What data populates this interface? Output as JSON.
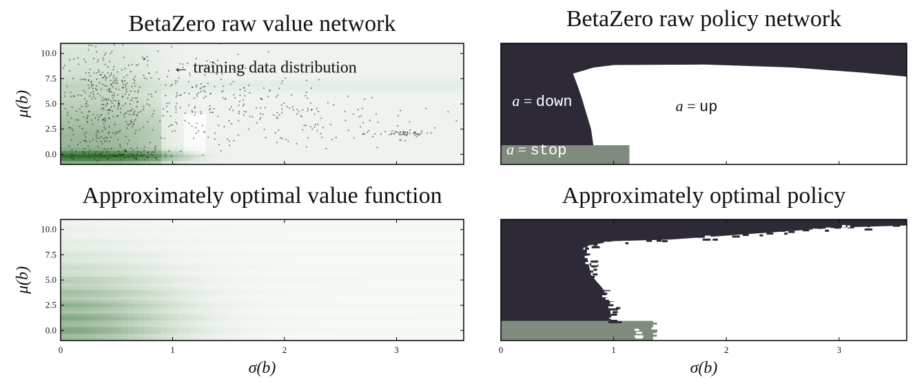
{
  "chart_data": [
    {
      "type": "heatmap",
      "title": "BetaZero raw value network",
      "xlabel": "",
      "ylabel": "μ(b)",
      "xlim": [
        0,
        3.6
      ],
      "ylim": [
        -1,
        11
      ],
      "x_ticks": [],
      "y_ticks": [
        "10.0",
        "7.5",
        "5.0",
        "2.5",
        "0.0"
      ],
      "y_tick_values": [
        10,
        7.5,
        5,
        2.5,
        0
      ],
      "colormap": [
        "#ffffff",
        "#2f6e2c"
      ],
      "annotation": {
        "text": "← training data distribution",
        "x": 1.0,
        "y": 8.1
      },
      "scatter_clusters": [
        {
          "cx": 0.42,
          "cy": 5.0,
          "sx": 0.22,
          "sy": 3.0,
          "n": 420
        },
        {
          "cx": 1.25,
          "cy": 5.5,
          "sx": 0.3,
          "sy": 2.3,
          "n": 170
        },
        {
          "cx": 2.05,
          "cy": 4.0,
          "sx": 0.45,
          "sy": 1.9,
          "n": 100
        },
        {
          "cx": 2.7,
          "cy": 3.2,
          "sx": 0.35,
          "sy": 1.3,
          "n": 40
        },
        {
          "cx": 3.05,
          "cy": 2.05,
          "sx": 0.11,
          "sy": 0.15,
          "n": 45
        },
        {
          "cx": 0.45,
          "cy": 0.0,
          "sx": 0.28,
          "sy": 0.3,
          "n": 90
        }
      ]
    },
    {
      "type": "heatmap",
      "title": "BetaZero raw policy network",
      "xlabel": "",
      "ylabel": "",
      "xlim": [
        0,
        3.6
      ],
      "ylim": [
        -1,
        11
      ],
      "x_ticks": [],
      "y_ticks": [],
      "categories": [
        "stop",
        "down",
        "up"
      ],
      "colors": {
        "stop": "#7f8b7d",
        "down": "#2e2937",
        "up": "#ffffff"
      },
      "stop_region": {
        "x_max": 1.14,
        "y_max": 0.9
      },
      "up_boundary_left": [
        [
          0.82,
          0.9
        ],
        [
          0.8,
          2.5
        ],
        [
          0.76,
          4.0
        ],
        [
          0.72,
          5.5
        ],
        [
          0.68,
          6.8
        ],
        [
          0.64,
          8.0
        ],
        [
          0.82,
          8.6
        ],
        [
          1.0,
          8.85
        ],
        [
          1.8,
          8.9
        ],
        [
          2.6,
          8.6
        ],
        [
          3.2,
          8.1
        ],
        [
          3.6,
          7.7
        ]
      ],
      "region_labels": [
        {
          "var": "a",
          "action": "down",
          "x": 0.1,
          "y": 4.8
        },
        {
          "var": "a",
          "action": "up",
          "x": 1.55,
          "y": 4.3
        },
        {
          "var": "a",
          "action": "stop",
          "x": 0.05,
          "y": 0.0
        }
      ]
    },
    {
      "type": "heatmap",
      "title": "Approximately optimal value function",
      "xlabel": "σ(b)",
      "ylabel": "μ(b)",
      "xlim": [
        0,
        3.6
      ],
      "ylim": [
        -1,
        11
      ],
      "x_ticks": [
        "0",
        "1",
        "2",
        "3"
      ],
      "x_tick_values": [
        0,
        1,
        2,
        3
      ],
      "y_ticks": [
        "10.0",
        "7.5",
        "5.0",
        "2.5",
        "0.0"
      ],
      "y_tick_values": [
        10,
        7.5,
        5,
        2.5,
        0
      ],
      "colormap": [
        "#ffffff",
        "#2f6e2c"
      ]
    },
    {
      "type": "heatmap",
      "title": "Approximately optimal policy",
      "xlabel": "σ(b)",
      "ylabel": "",
      "xlim": [
        0,
        3.6
      ],
      "ylim": [
        -1,
        11
      ],
      "x_ticks": [
        "0",
        "1",
        "2",
        "3"
      ],
      "x_tick_values": [
        0,
        1,
        2,
        3
      ],
      "y_ticks": [],
      "categories": [
        "stop",
        "down",
        "up"
      ],
      "colors": {
        "stop": "#7f8b7d",
        "down": "#2e2937",
        "up": "#ffffff"
      },
      "stop_region": {
        "x_max": 1.35,
        "y_max": 0.95
      },
      "up_boundary_left": [
        [
          0.98,
          0.95
        ],
        [
          0.97,
          2.0
        ],
        [
          0.96,
          3.0
        ],
        [
          0.9,
          4.2
        ],
        [
          0.8,
          5.5
        ],
        [
          0.78,
          6.5
        ],
        [
          0.76,
          7.5
        ],
        [
          0.77,
          8.4
        ],
        [
          1.0,
          8.85
        ],
        [
          1.5,
          9.0
        ],
        [
          2.0,
          9.4
        ],
        [
          2.5,
          9.8
        ],
        [
          3.0,
          10.2
        ],
        [
          3.6,
          10.4
        ]
      ]
    }
  ]
}
